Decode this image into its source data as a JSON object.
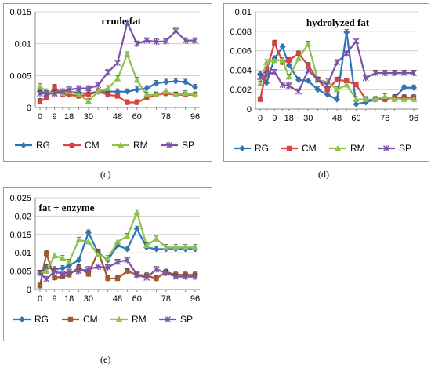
{
  "captions": [
    "(c)",
    "(d)",
    "(e)"
  ],
  "colors": {
    "RG": "#2e75b6",
    "CM": "#d9433f",
    "RM": "#8dc34a",
    "SP": "#7b52a6",
    "CM_e": "#9c5a2e"
  },
  "chart_data": [
    {
      "type": "line",
      "title": "crude fat",
      "categories": [
        "0",
        "9",
        "18",
        "30",
        "48",
        "60",
        "78",
        "96"
      ],
      "x": [
        0,
        4,
        9,
        14,
        18,
        24,
        30,
        36,
        42,
        48,
        54,
        60,
        66,
        72,
        78,
        84,
        90,
        96
      ],
      "ylim": [
        0,
        0.015
      ],
      "yticks": [
        "0",
        "0.005",
        "0.01",
        "0.015"
      ],
      "legend_position": "bottom",
      "series": [
        {
          "name": "RG",
          "color_key": "RG",
          "values": [
            0.0025,
            0.0022,
            0.0025,
            0.0022,
            0.0025,
            0.0023,
            0.0022,
            0.0025,
            0.0025,
            0.0025,
            0.0025,
            0.0028,
            0.003,
            0.0038,
            0.004,
            0.0041,
            0.004,
            0.0032
          ]
        },
        {
          "name": "CM",
          "color_key": "CM",
          "values": [
            0.001,
            0.0015,
            0.0032,
            0.002,
            0.002,
            0.0018,
            0.002,
            0.0025,
            0.002,
            0.0018,
            0.0008,
            0.0008,
            0.0015,
            0.002,
            0.0022,
            0.002,
            0.002,
            0.002
          ]
        },
        {
          "name": "RM",
          "color_key": "RM",
          "values": [
            0.0033,
            0.0025,
            0.0022,
            0.0022,
            0.0025,
            0.002,
            0.001,
            0.0025,
            0.003,
            0.0045,
            0.0083,
            0.0043,
            0.002,
            0.002,
            0.0025,
            0.002,
            0.0022,
            0.002
          ]
        },
        {
          "name": "SP",
          "color_key": "SP",
          "values": [
            0.0022,
            0.0022,
            0.0022,
            0.0025,
            0.0028,
            0.003,
            0.003,
            0.0035,
            0.0055,
            0.007,
            0.0133,
            0.01,
            0.0105,
            0.0103,
            0.0104,
            0.012,
            0.0105,
            0.0105
          ]
        }
      ]
    },
    {
      "type": "line",
      "title": "hydrolyzed fat",
      "categories": [
        "0",
        "9",
        "18",
        "30",
        "48",
        "60",
        "78",
        "96"
      ],
      "x": [
        0,
        4,
        9,
        14,
        18,
        24,
        30,
        36,
        42,
        48,
        54,
        60,
        66,
        72,
        78,
        84,
        90,
        96
      ],
      "ylim": [
        0,
        0.01
      ],
      "yticks": [
        "0",
        "0.002",
        "0.004",
        "0.006",
        "0.008",
        "0.01"
      ],
      "legend_position": "bottom",
      "series": [
        {
          "name": "RG",
          "color_key": "RG",
          "values": [
            0.0036,
            0.0027,
            0.0052,
            0.0064,
            0.0045,
            0.003,
            0.0029,
            0.002,
            0.0015,
            0.001,
            0.0079,
            0.0005,
            0.0007,
            0.001,
            0.001,
            0.0012,
            0.0022,
            0.0022
          ]
        },
        {
          "name": "CM",
          "color_key": "CM",
          "values": [
            0.001,
            0.004,
            0.0068,
            0.0048,
            0.005,
            0.0057,
            0.0045,
            0.003,
            0.002,
            0.003,
            0.0029,
            0.0025,
            0.001,
            0.001,
            0.001,
            0.0012,
            0.0012,
            0.0012
          ]
        },
        {
          "name": "RM",
          "color_key": "RM",
          "values": [
            0.0026,
            0.0048,
            0.005,
            0.005,
            0.0033,
            0.0052,
            0.0067,
            0.003,
            0.0028,
            0.002,
            0.0025,
            0.001,
            0.001,
            0.001,
            0.0013,
            0.001,
            0.001,
            0.001
          ]
        },
        {
          "name": "SP",
          "color_key": "SP",
          "values": [
            0.0033,
            0.0035,
            0.0038,
            0.0025,
            0.0024,
            0.0018,
            0.004,
            0.003,
            0.0025,
            0.0048,
            0.0057,
            0.007,
            0.0032,
            0.0037,
            0.0037,
            0.0037,
            0.0037,
            0.0037
          ]
        }
      ]
    },
    {
      "type": "line",
      "title": "fat + enzyme",
      "categories": [
        "0",
        "9",
        "18",
        "30",
        "48",
        "60",
        "78",
        "96"
      ],
      "x": [
        0,
        4,
        9,
        14,
        18,
        24,
        30,
        36,
        42,
        48,
        54,
        60,
        66,
        72,
        78,
        84,
        90,
        96
      ],
      "ylim": [
        0,
        0.025
      ],
      "yticks": [
        "0",
        "0.005",
        "0.01",
        "0.015",
        "0.02",
        "0.025"
      ],
      "legend_position": "bottom",
      "series": [
        {
          "name": "RG",
          "color_key": "RG",
          "values": [
            0.0045,
            0.006,
            0.0055,
            0.0058,
            0.0065,
            0.008,
            0.0155,
            0.01,
            0.008,
            0.012,
            0.011,
            0.0165,
            0.0115,
            0.011,
            0.011,
            0.011,
            0.011,
            0.011
          ]
        },
        {
          "name": "CM",
          "color_key": "CM_e",
          "values": [
            0.001,
            0.0098,
            0.0032,
            0.0035,
            0.004,
            0.006,
            0.0042,
            0.0103,
            0.003,
            0.003,
            0.005,
            0.004,
            0.0038,
            0.003,
            0.0048,
            0.004,
            0.004,
            0.004
          ]
        },
        {
          "name": "RM",
          "color_key": "RM",
          "values": [
            0.0045,
            0.005,
            0.0092,
            0.0085,
            0.0075,
            0.0135,
            0.013,
            0.0095,
            0.0085,
            0.013,
            0.0145,
            0.021,
            0.012,
            0.0138,
            0.0115,
            0.0115,
            0.0115,
            0.0115
          ]
        },
        {
          "name": "SP",
          "color_key": "SP",
          "values": [
            0.0045,
            0.0028,
            0.005,
            0.0042,
            0.0048,
            0.005,
            0.0055,
            0.0062,
            0.006,
            0.0075,
            0.008,
            0.004,
            0.0032,
            0.0055,
            0.0045,
            0.0035,
            0.0035,
            0.0035
          ]
        }
      ]
    }
  ]
}
